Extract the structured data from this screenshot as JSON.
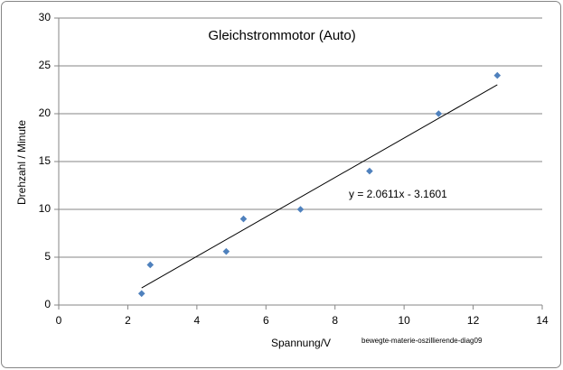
{
  "chart_data": {
    "type": "scatter",
    "title": "Gleichstrommotor (Auto)",
    "x_label": "Spannung/V",
    "y_label": "Drehzahl / Minute",
    "source": "bewegte-materie-oszillierende-diag09",
    "x": [
      2.4,
      2.65,
      4.85,
      5.35,
      7,
      9,
      11,
      12.7
    ],
    "values": [
      1.2,
      4.2,
      5.6,
      9,
      10,
      14,
      20,
      24
    ],
    "color": "#4f81bd",
    "trendline": {
      "label": "y = 2.0611x - 3.1601",
      "x": [
        2.4,
        12.7
      ],
      "values": [
        1.79,
        23.02
      ],
      "color": "#000000"
    },
    "xlim": [
      0,
      14
    ],
    "xticks": [
      0,
      2,
      4,
      6,
      8,
      10,
      12,
      14
    ],
    "ylim": [
      0,
      30
    ],
    "yticks": [
      0,
      5,
      10,
      15,
      20,
      25,
      30
    ],
    "grid": true
  }
}
